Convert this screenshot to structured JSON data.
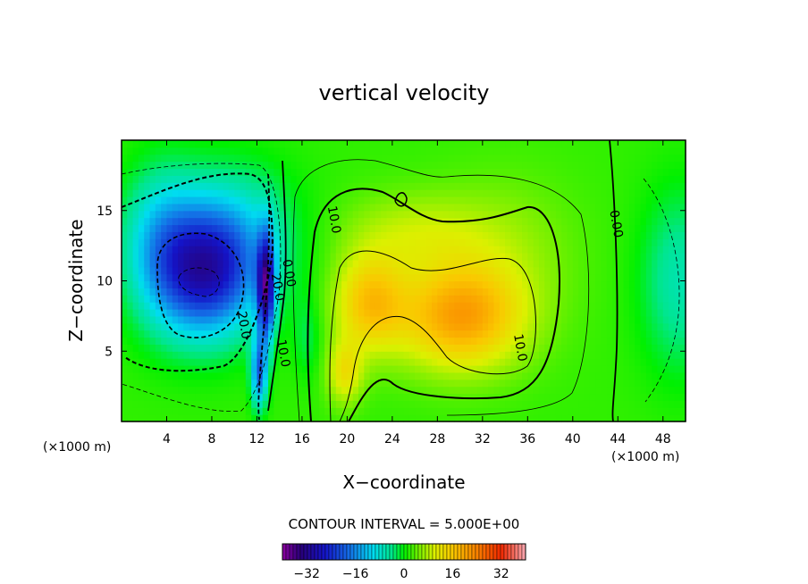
{
  "chart_data": {
    "type": "heatmap",
    "title": "vertical velocity",
    "xlabel": "X−coordinate",
    "ylabel": "Z−coordinate",
    "x_unit": "(×1000 m)",
    "xlim": [
      0,
      50
    ],
    "ylim": [
      0,
      20
    ],
    "x_ticks": [
      4,
      8,
      12,
      16,
      20,
      24,
      28,
      32,
      36,
      40,
      44,
      48
    ],
    "x_tick_labels": [
      "4",
      "8",
      "12",
      "16",
      "20",
      "24",
      "28",
      "32",
      "36",
      "40",
      "44",
      "48"
    ],
    "y_ticks": [
      5,
      10,
      15
    ],
    "y_tick_labels": [
      "5",
      "10",
      "15"
    ],
    "contour_interval_text": "CONTOUR INTERVAL = 5.000E+00",
    "colorbar": {
      "min": -40,
      "max": 40,
      "ticks": [
        -32,
        -16,
        0,
        16,
        32
      ],
      "tick_labels": [
        "−32",
        "−16",
        "0",
        "16",
        "32"
      ]
    },
    "contour_labels": [
      {
        "text": "10.0",
        "x": 18.5,
        "z": 14.3
      },
      {
        "text": "0.00",
        "x": 43.5,
        "z": 14.0
      },
      {
        "text": "10.0",
        "x": 35.0,
        "z": 5.2
      },
      {
        "text": "10.0",
        "x": 14.0,
        "z": 4.8
      },
      {
        "text": "20.0",
        "x": 10.5,
        "z": 6.8
      },
      {
        "text": "20.0",
        "x": 13.5,
        "z": 9.5
      },
      {
        "text": "0.00",
        "x": 14.5,
        "z": 10.5
      }
    ],
    "features": [
      {
        "name": "updraft core",
        "x": 30.0,
        "z": 7.5,
        "w": 18
      },
      {
        "name": "updraft",
        "x": 21.5,
        "z": 8.0,
        "w": 16
      },
      {
        "name": "updraft base",
        "x": 19.5,
        "z": 3.0,
        "w": 12
      },
      {
        "name": "downdraft core",
        "x": 7.5,
        "z": 10.5,
        "w": -24
      },
      {
        "name": "downdraft",
        "x": 3.5,
        "z": 12.5,
        "w": -14
      },
      {
        "name": "downdraft jet",
        "x": 12.8,
        "z": 9.0,
        "w": -30
      },
      {
        "name": "downdraft",
        "x": 49.5,
        "z": 10.0,
        "w": -7
      }
    ]
  }
}
